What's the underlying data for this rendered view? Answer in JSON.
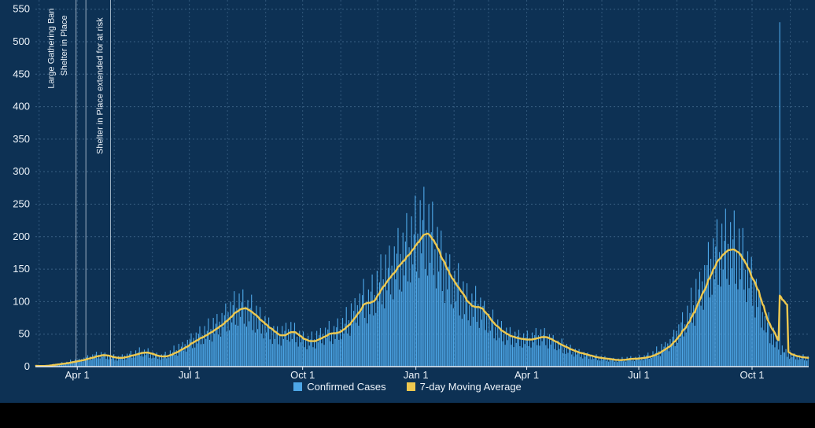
{
  "chart_data": {
    "type": "bar",
    "title": "",
    "legend_bar": "Confirmed Cases",
    "legend_line": "7-day Moving Average",
    "overlay_line": {
      "name": "7-day Moving Average",
      "derivation": "7-day trailing mean of daily confirmed cases"
    },
    "colors": {
      "background": "#0d3154",
      "footer": "#000000",
      "bar": "#4da6e6",
      "line": "#eec84f",
      "grid": "#5d87ab",
      "axis": "#e8eef5",
      "text": "#eef4fa",
      "annotation_line": "#c2d0dd"
    },
    "y_axis": {
      "min": 0,
      "max": 560,
      "tick_step": 50,
      "ticks": [
        0,
        50,
        100,
        150,
        200,
        250,
        300,
        350,
        400,
        450,
        500,
        550
      ]
    },
    "x_axis": {
      "ticks": [
        {
          "label": "Apr 1",
          "day": 34
        },
        {
          "label": "Jul 1",
          "day": 125
        },
        {
          "label": "Oct 1",
          "day": 217
        },
        {
          "label": "Jan 1",
          "day": 309
        },
        {
          "label": "Apr 1",
          "day": 399
        },
        {
          "label": "Jul 1",
          "day": 490
        },
        {
          "label": "Oct 1",
          "day": 582
        }
      ],
      "month_gridline_days": [
        3,
        34,
        64,
        95,
        125,
        156,
        187,
        217,
        248,
        278,
        309,
        340,
        368,
        399,
        429,
        460,
        490,
        521,
        552,
        582,
        613
      ]
    },
    "annotations": [
      {
        "label": "Large Gathering Ban",
        "day": 33,
        "text_offset": -28
      },
      {
        "label": "Shelter in Place",
        "day": 41,
        "text_offset": -24
      },
      {
        "label": "Shelter in Place extended for at risk",
        "day": 61,
        "text_offset": -10
      }
    ],
    "bars": {
      "bin_size_days": 4,
      "weekly_pattern": [
        1.35,
        0.75,
        1.05,
        0.7,
        1.25,
        0.85,
        1.1
      ],
      "outlier": {
        "day_index": 604,
        "value": 530
      },
      "bin_values": [
        1,
        1,
        2,
        3,
        4,
        5,
        6,
        8,
        9,
        11,
        13,
        15,
        17,
        18,
        16,
        14,
        13,
        14,
        16,
        18,
        20,
        22,
        21,
        18,
        16,
        15,
        17,
        20,
        24,
        28,
        33,
        38,
        42,
        46,
        50,
        55,
        60,
        66,
        72,
        80,
        86,
        90,
        88,
        82,
        75,
        68,
        62,
        56,
        50,
        46,
        50,
        55,
        50,
        44,
        40,
        38,
        40,
        44,
        48,
        52,
        50,
        55,
        60,
        68,
        78,
        90,
        100,
        95,
        105,
        118,
        128,
        138,
        148,
        158,
        165,
        175,
        185,
        195,
        205,
        200,
        188,
        172,
        155,
        140,
        128,
        118,
        105,
        95,
        90,
        92,
        85,
        75,
        65,
        58,
        52,
        48,
        45,
        43,
        42,
        41,
        42,
        44,
        46,
        44,
        40,
        36,
        32,
        28,
        25,
        22,
        20,
        18,
        16,
        14,
        13,
        12,
        11,
        10,
        10,
        11,
        12,
        12,
        13,
        14,
        16,
        19,
        23,
        28,
        34,
        42,
        52,
        62,
        75,
        90,
        108,
        125,
        142,
        158,
        168,
        176,
        180,
        178,
        170,
        158,
        142,
        125,
        108,
        80,
        62,
        48,
        35,
        26,
        20,
        17,
        15,
        14,
        13
      ]
    }
  }
}
